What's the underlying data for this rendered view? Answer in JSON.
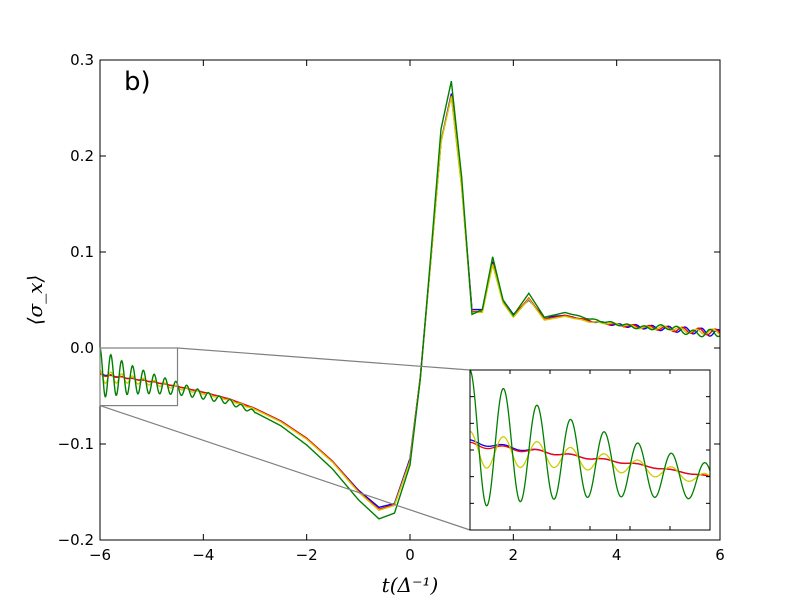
{
  "chart_data": {
    "type": "line",
    "panel_label": "b)",
    "xlabel": "t(Δ⁻¹)",
    "ylabel": "⟨σ_x⟩",
    "xlim": [
      -6,
      6
    ],
    "ylim": [
      -0.2,
      0.3
    ],
    "x_ticks": [
      -6,
      -4,
      -2,
      0,
      2,
      4,
      6
    ],
    "y_ticks": [
      -0.2,
      -0.1,
      0.0,
      0.1,
      0.2,
      0.3
    ],
    "x_tick_labels": [
      "−6",
      "−4",
      "−2",
      "0",
      "2",
      "4",
      "6"
    ],
    "y_tick_labels": [
      "−0.2",
      "−0.1",
      "0.0",
      "0.1",
      "0.2",
      "0.3"
    ],
    "grid": false,
    "series_colors": [
      "#0000ff",
      "#ff0000",
      "#cccc00",
      "#007f00"
    ],
    "series": [
      {
        "color": "#0000ff",
        "x": [
          -6,
          -5.5,
          -5,
          -4.5,
          -4,
          -3.5,
          -3,
          -2.5,
          -2,
          -1.5,
          -1,
          -0.6,
          -0.3,
          0,
          0.2,
          0.4,
          0.6,
          0.8,
          1.0,
          1.2,
          1.4,
          1.6,
          1.8,
          2.0,
          2.3,
          2.6,
          3.0,
          3.5,
          4,
          4.5,
          5,
          5.5,
          6
        ],
        "y": [
          -0.027,
          -0.031,
          -0.035,
          -0.04,
          -0.046,
          -0.053,
          -0.063,
          -0.076,
          -0.094,
          -0.118,
          -0.148,
          -0.166,
          -0.162,
          -0.115,
          -0.03,
          0.09,
          0.215,
          0.265,
          0.17,
          0.04,
          0.04,
          0.09,
          0.05,
          0.035,
          0.05,
          0.032,
          0.034,
          0.028,
          0.024,
          0.022,
          0.02,
          0.018,
          0.015
        ]
      },
      {
        "color": "#ff0000",
        "x": [
          -6,
          -5.5,
          -5,
          -4.5,
          -4,
          -3.5,
          -3,
          -2.5,
          -2,
          -1.5,
          -1,
          -0.6,
          -0.3,
          0,
          0.2,
          0.4,
          0.6,
          0.8,
          1.0,
          1.2,
          1.4,
          1.6,
          1.8,
          2.0,
          2.3,
          2.6,
          3.0,
          3.5,
          4,
          4.5,
          5,
          5.5,
          6
        ],
        "y": [
          -0.028,
          -0.031,
          -0.035,
          -0.04,
          -0.046,
          -0.053,
          -0.063,
          -0.076,
          -0.094,
          -0.118,
          -0.149,
          -0.168,
          -0.163,
          -0.117,
          -0.03,
          0.09,
          0.215,
          0.263,
          0.168,
          0.038,
          0.038,
          0.088,
          0.048,
          0.033,
          0.052,
          0.03,
          0.034,
          0.028,
          0.024,
          0.022,
          0.02,
          0.018,
          0.016
        ]
      },
      {
        "color": "#cccc00",
        "x": [
          -6,
          -5.5,
          -5,
          -4.5,
          -4,
          -3.5,
          -3,
          -2.5,
          -2,
          -1.5,
          -1,
          -0.6,
          -0.3,
          0,
          0.2,
          0.4,
          0.6,
          0.8,
          1.0,
          1.2,
          1.4,
          1.6,
          1.8,
          2.0,
          2.3,
          2.6,
          3.0,
          3.5,
          4,
          4.5,
          5,
          5.5,
          6
        ],
        "y": [
          -0.03,
          -0.032,
          -0.036,
          -0.041,
          -0.047,
          -0.054,
          -0.064,
          -0.077,
          -0.095,
          -0.119,
          -0.15,
          -0.169,
          -0.164,
          -0.118,
          -0.031,
          0.089,
          0.214,
          0.262,
          0.167,
          0.037,
          0.037,
          0.087,
          0.047,
          0.032,
          0.051,
          0.029,
          0.033,
          0.027,
          0.025,
          0.021,
          0.021,
          0.017,
          0.017
        ]
      },
      {
        "color": "#007f00",
        "x": [
          -6,
          -5.5,
          -5,
          -4.5,
          -4,
          -3.5,
          -3,
          -2.5,
          -2,
          -1.5,
          -1,
          -0.6,
          -0.3,
          0,
          0.2,
          0.4,
          0.6,
          0.8,
          1.0,
          1.2,
          1.4,
          1.6,
          1.8,
          2.0,
          2.3,
          2.6,
          3.0,
          3.5,
          4,
          4.5,
          5,
          5.5,
          6
        ],
        "y": [
          -0.026,
          -0.032,
          -0.037,
          -0.042,
          -0.049,
          -0.056,
          -0.067,
          -0.081,
          -0.101,
          -0.126,
          -0.158,
          -0.178,
          -0.172,
          -0.122,
          -0.032,
          0.095,
          0.228,
          0.278,
          0.178,
          0.035,
          0.04,
          0.095,
          0.05,
          0.034,
          0.057,
          0.032,
          0.037,
          0.03,
          0.025,
          0.021,
          0.022,
          0.015,
          0.016
        ]
      }
    ],
    "zoom_region": {
      "xlim": [
        -6,
        -4.5
      ],
      "ylim": [
        -0.06,
        0.0
      ]
    },
    "inset": {
      "xlim": [
        -6,
        -4.5
      ],
      "ylim": [
        -0.06,
        0.0
      ],
      "tick_labels_shown": false
    }
  }
}
